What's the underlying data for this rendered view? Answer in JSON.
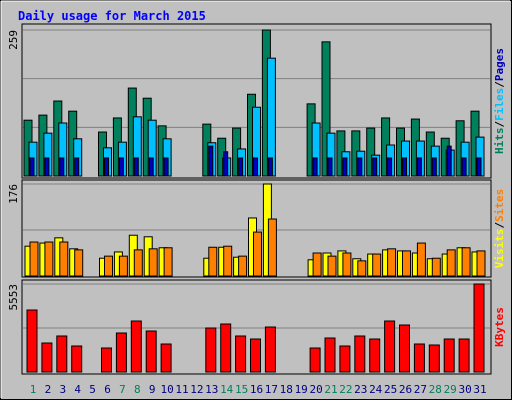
{
  "title": "Daily usage for March 2015",
  "legend_separator": "/",
  "chart_data": [
    {
      "type": "bar",
      "ylim": [
        0,
        259
      ],
      "yticks": [
        259
      ],
      "series": [
        {
          "name": "Hits",
          "color": "#00805c",
          "values": [
            99,
            108,
            133,
            115,
            0,
            78,
            103,
            156,
            138,
            89,
            0,
            0,
            92,
            67,
            85,
            145,
            259,
            0,
            0,
            128,
            238,
            80,
            80,
            85,
            103,
            85,
            101,
            78,
            67,
            98,
            115
          ]
        },
        {
          "name": "Files",
          "color": "#00c0ff",
          "values": [
            60,
            76,
            94,
            66,
            0,
            50,
            60,
            105,
            99,
            66,
            0,
            0,
            59,
            32,
            48,
            122,
            209,
            0,
            0,
            94,
            76,
            43,
            44,
            37,
            55,
            62,
            62,
            53,
            46,
            60,
            69
          ]
        },
        {
          "name": "Pages",
          "color": "#0000c0",
          "values": [
            32,
            32,
            32,
            32,
            0,
            32,
            32,
            32,
            32,
            32,
            0,
            0,
            53,
            43,
            32,
            32,
            32,
            0,
            0,
            32,
            32,
            32,
            32,
            32,
            32,
            32,
            32,
            32,
            53,
            32,
            32
          ]
        }
      ]
    },
    {
      "type": "bar",
      "ylim": [
        0,
        176
      ],
      "yticks": [
        176
      ],
      "series": [
        {
          "name": "Visits",
          "color": "#ffff00",
          "values": [
            57,
            63,
            73,
            52,
            0,
            34,
            46,
            78,
            75,
            54,
            0,
            0,
            34,
            55,
            36,
            111,
            176,
            0,
            0,
            31,
            44,
            48,
            33,
            42,
            50,
            48,
            44,
            33,
            42,
            54,
            46
          ]
        },
        {
          "name": "Sites",
          "color": "#ff8000",
          "values": [
            65,
            65,
            65,
            50,
            0,
            38,
            38,
            50,
            52,
            54,
            0,
            0,
            55,
            57,
            38,
            84,
            109,
            0,
            0,
            44,
            38,
            44,
            29,
            42,
            52,
            48,
            63,
            34,
            50,
            54,
            48
          ]
        }
      ]
    },
    {
      "type": "bar",
      "ylim": [
        0,
        5553
      ],
      "yticks": [
        5553
      ],
      "categories": [
        "1",
        "2",
        "3",
        "4",
        "5",
        "6",
        "7",
        "8",
        "9",
        "10",
        "11",
        "12",
        "13",
        "14",
        "15",
        "16",
        "17",
        "18",
        "19",
        "20",
        "21",
        "22",
        "23",
        "24",
        "25",
        "26",
        "27",
        "28",
        "29",
        "30",
        "31"
      ],
      "category_colors": [
        "#00805c",
        "#000080",
        "#000080",
        "#000080",
        "#000080",
        "#000080",
        "#00805c",
        "#00805c",
        "#000080",
        "#000080",
        "#000080",
        "#000080",
        "#000080",
        "#00805c",
        "#00805c",
        "#000080",
        "#000080",
        "#000080",
        "#000080",
        "#000080",
        "#00805c",
        "#00805c",
        "#000080",
        "#000080",
        "#000080",
        "#000080",
        "#000080",
        "#00805c",
        "#00805c",
        "#000080",
        "#000080"
      ],
      "series": [
        {
          "name": "KBytes",
          "color": "#ff0000",
          "values": [
            3912,
            1830,
            2272,
            1641,
            0,
            1514,
            2461,
            3218,
            2587,
            1767,
            0,
            0,
            2776,
            3029,
            2272,
            2082,
            2839,
            0,
            0,
            1514,
            2145,
            1641,
            2272,
            2082,
            3218,
            2966,
            1767,
            1704,
            2082,
            2082,
            5553
          ]
        }
      ]
    }
  ]
}
